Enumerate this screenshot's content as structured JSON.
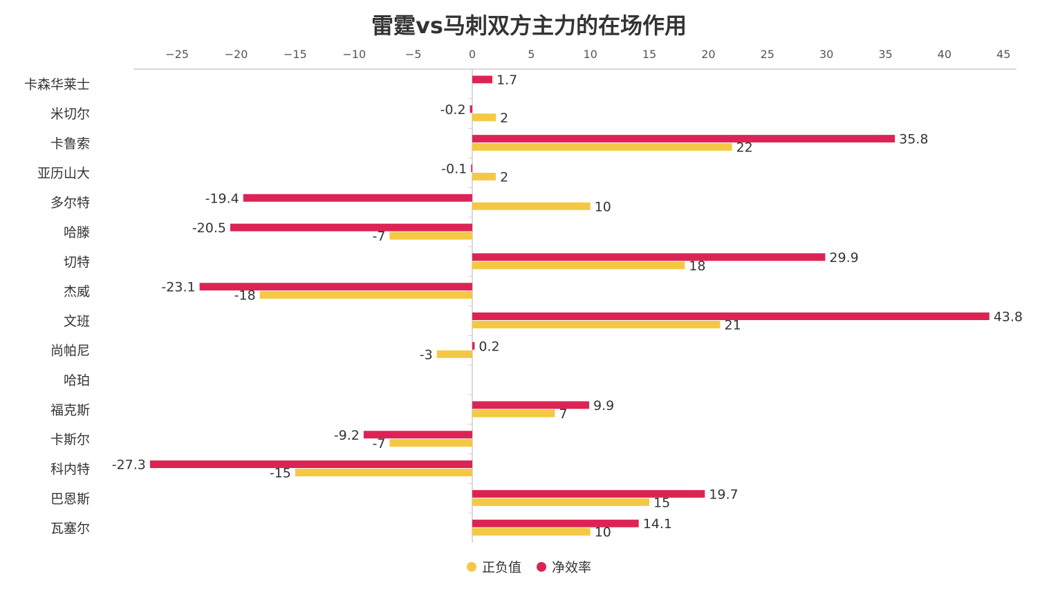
{
  "chart_data": {
    "type": "bar",
    "orientation": "horizontal",
    "title": "雷霆vs马刺双方主力的在场作用",
    "categories": [
      "卡森华莱士",
      "米切尔",
      "卡鲁索",
      "亚历山大",
      "多尔特",
      "哈滕",
      "切特",
      "杰威",
      "文班",
      "尚帕尼",
      "哈珀",
      "福克斯",
      "卡斯尔",
      "科内特",
      "巴恩斯",
      "瓦塞尔"
    ],
    "series": [
      {
        "name": "净效率",
        "color": "#dc2454",
        "values": [
          1.7,
          -0.2,
          35.8,
          -0.1,
          -19.4,
          -20.5,
          29.9,
          -23.1,
          43.8,
          0.2,
          null,
          9.9,
          -9.2,
          -27.3,
          19.7,
          14.1
        ]
      },
      {
        "name": "正负值",
        "color": "#f5c843",
        "values": [
          null,
          2,
          22,
          2,
          10,
          -7,
          18,
          -18,
          21,
          -3,
          null,
          7,
          -7,
          -15,
          15,
          10
        ]
      }
    ],
    "xlim": [
      -28.7,
      46.1
    ],
    "xticks": [
      -25,
      -20,
      -15,
      -10,
      -5,
      0,
      5,
      10,
      15,
      20,
      25,
      30,
      35,
      40,
      45
    ],
    "xtick_labels": [
      "−25",
      "−20",
      "−15",
      "−10",
      "−5",
      "0",
      "5",
      "10",
      "15",
      "20",
      "25",
      "30",
      "35",
      "40",
      "45"
    ],
    "legend": {
      "position": "bottom",
      "order": [
        "正负值",
        "净效率"
      ]
    },
    "grid": false
  }
}
